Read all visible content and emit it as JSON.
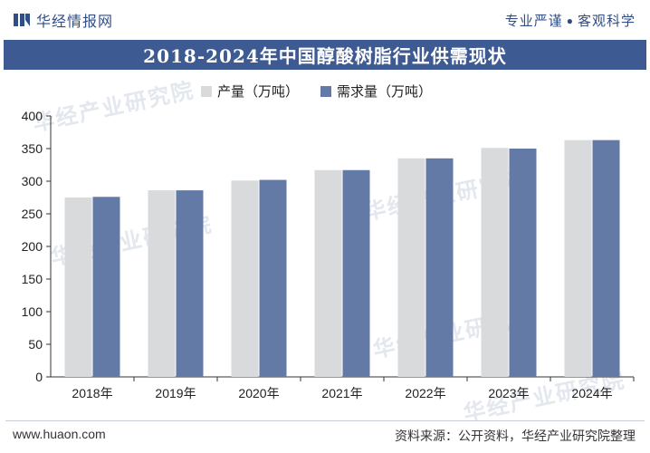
{
  "header": {
    "brand_name": "华经情报网",
    "slogan_left": "专业严谨",
    "slogan_right": "客观科学"
  },
  "title": "2018-2024年中国醇酸树脂行业供需现状",
  "colors": {
    "title_band": "#3d5a92",
    "production": "#d9dadc",
    "demand": "#647aa6"
  },
  "legend": {
    "production_label": "产量（万吨）",
    "demand_label": "需求量（万吨）"
  },
  "chart_data": {
    "type": "bar",
    "categories": [
      "2018年",
      "2019年",
      "2020年",
      "2021年",
      "2022年",
      "2023年",
      "2024年"
    ],
    "series": [
      {
        "name": "产量（万吨）",
        "values": [
          275,
          286,
          301,
          317,
          335,
          351,
          363
        ]
      },
      {
        "name": "需求量（万吨）",
        "values": [
          276,
          286,
          302,
          317,
          335,
          350,
          363
        ]
      }
    ],
    "ylim": [
      0,
      400
    ],
    "yticks": [
      0,
      50,
      100,
      150,
      200,
      250,
      300,
      350,
      400
    ],
    "xlabel": "",
    "ylabel": "",
    "legend_position": "top-left"
  },
  "watermark": "华经产业研究院",
  "footer": {
    "url": "www.huaon.com",
    "source": "资料来源：公开资料，华经产业研究院整理"
  }
}
